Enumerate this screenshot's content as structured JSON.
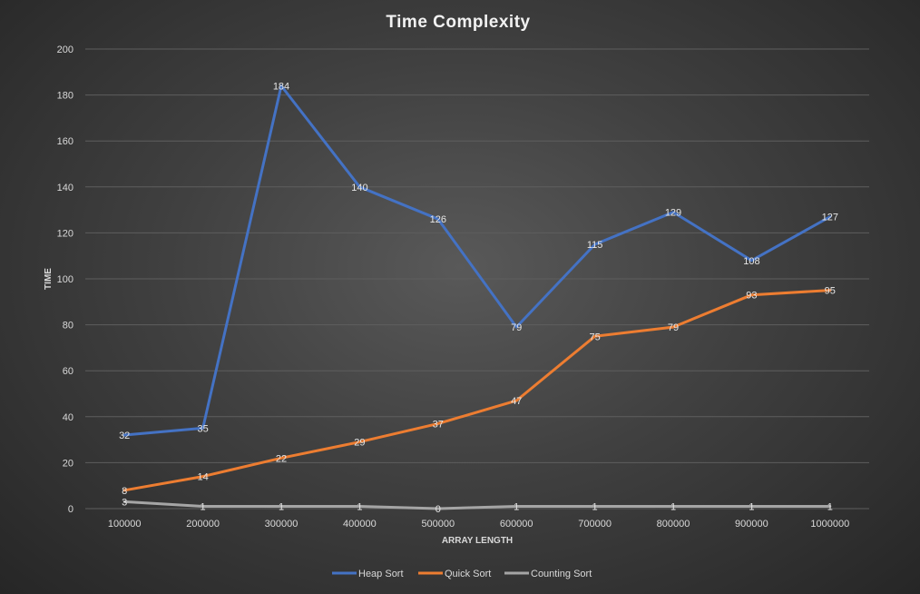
{
  "chart_data": {
    "type": "line",
    "title": "Time Complexity",
    "xlabel": "ARRAY LENGTH",
    "ylabel": "TIME",
    "categories": [
      "100000",
      "200000",
      "300000",
      "400000",
      "500000",
      "600000",
      "700000",
      "800000",
      "900000",
      "1000000"
    ],
    "ylim": [
      0,
      200
    ],
    "yticks": [
      0,
      20,
      40,
      60,
      80,
      100,
      120,
      140,
      160,
      180,
      200
    ],
    "grid": true,
    "legend_position": "bottom",
    "data_labels": true,
    "series": [
      {
        "name": "Heap Sort",
        "color": "#4472c4",
        "values": [
          32,
          35,
          184,
          140,
          126,
          79,
          115,
          129,
          108,
          127
        ]
      },
      {
        "name": "Quick Sort",
        "color": "#ed7d31",
        "values": [
          8,
          14,
          22,
          29,
          37,
          47,
          75,
          79,
          93,
          95
        ]
      },
      {
        "name": "Counting Sort",
        "color": "#a5a5a5",
        "values": [
          3,
          1,
          1,
          1,
          0,
          1,
          1,
          1,
          1,
          1
        ]
      }
    ]
  }
}
